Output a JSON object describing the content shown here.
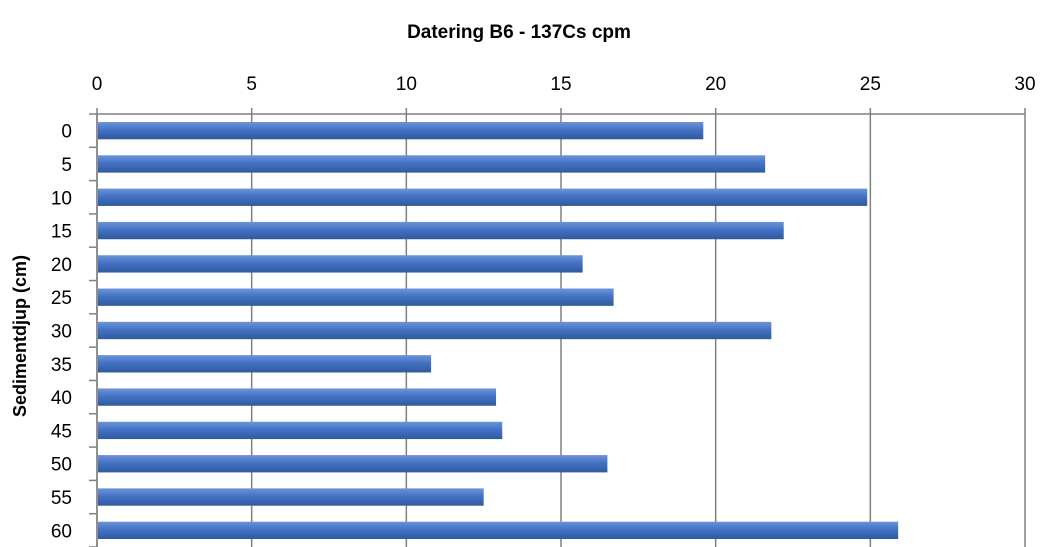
{
  "chart_data": {
    "type": "bar",
    "orientation": "horizontal",
    "title": "Datering B6 - 137Cs cpm",
    "ylabel": "Sedimentdjup (cm)",
    "xlabel": "",
    "xlim": [
      0,
      30
    ],
    "x_ticks": [
      0,
      5,
      10,
      15,
      20,
      25,
      30
    ],
    "x_axis_position": "top",
    "categories": [
      "0",
      "5",
      "10",
      "15",
      "20",
      "25",
      "30",
      "35",
      "40",
      "45",
      "50",
      "55",
      "60"
    ],
    "values": [
      19.6,
      21.6,
      24.9,
      22.2,
      15.7,
      16.7,
      21.8,
      10.8,
      12.9,
      13.1,
      16.5,
      12.5,
      25.9
    ],
    "bar_color": "#4472C4",
    "grid": true,
    "legend": "none"
  }
}
